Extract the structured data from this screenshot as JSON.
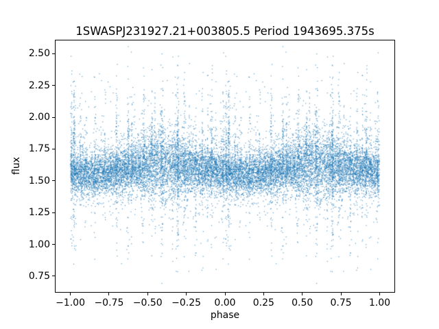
{
  "chart_data": {
    "type": "scatter",
    "title": "1SWASPJ231927.21+003805.5 Period 1943695.375s",
    "xlabel": "phase",
    "ylabel": "flux",
    "xlim": [
      -1.1,
      1.1
    ],
    "ylim": [
      0.62,
      2.61
    ],
    "x_ticks": [
      -1.0,
      -0.75,
      -0.5,
      -0.25,
      0.0,
      0.25,
      0.5,
      0.75,
      1.0
    ],
    "x_tick_labels": [
      "−1.00",
      "−0.75",
      "−0.50",
      "−0.25",
      "0.00",
      "0.25",
      "0.50",
      "0.75",
      "1.00"
    ],
    "y_ticks": [
      0.75,
      1.0,
      1.25,
      1.5,
      1.75,
      2.0,
      2.25,
      2.5
    ],
    "y_tick_labels": [
      "0.75",
      "1.00",
      "1.25",
      "1.50",
      "1.75",
      "2.00",
      "2.25",
      "2.50"
    ],
    "marker_color": "#1f77b4",
    "marker_alpha": 0.75,
    "marker_size_px": 1.2,
    "spine_color": "#000000",
    "background": "#ffffff",
    "grid": false,
    "legend": false,
    "series_description": "Folded SuperWASP light curve plotted over two phase cycles: dense flux band centered near 1.6 (spread ~1.4-1.8), broadened bulge reaching ~2.0 around phase -0.4 and +0.6, with narrow vertical outlier streaks spanning ~0.7 to ~2.55 at scattered phases",
    "generator": {
      "seed": 42,
      "n_band": 6500,
      "band_mean": 1.585,
      "mean_mod_amp": 0.035,
      "mean_mod_phase": 0.62,
      "band_sigma": 0.08,
      "sigma_bulge": 0.06,
      "sigma_bulge_width": 0.115,
      "n_streaks": 42,
      "streak_max_count": 55,
      "streak_sigma": 0.34,
      "n_outliers": 600,
      "outlier_sigma": 0.26,
      "flux_min": 0.67,
      "flux_max": 2.56
    }
  }
}
